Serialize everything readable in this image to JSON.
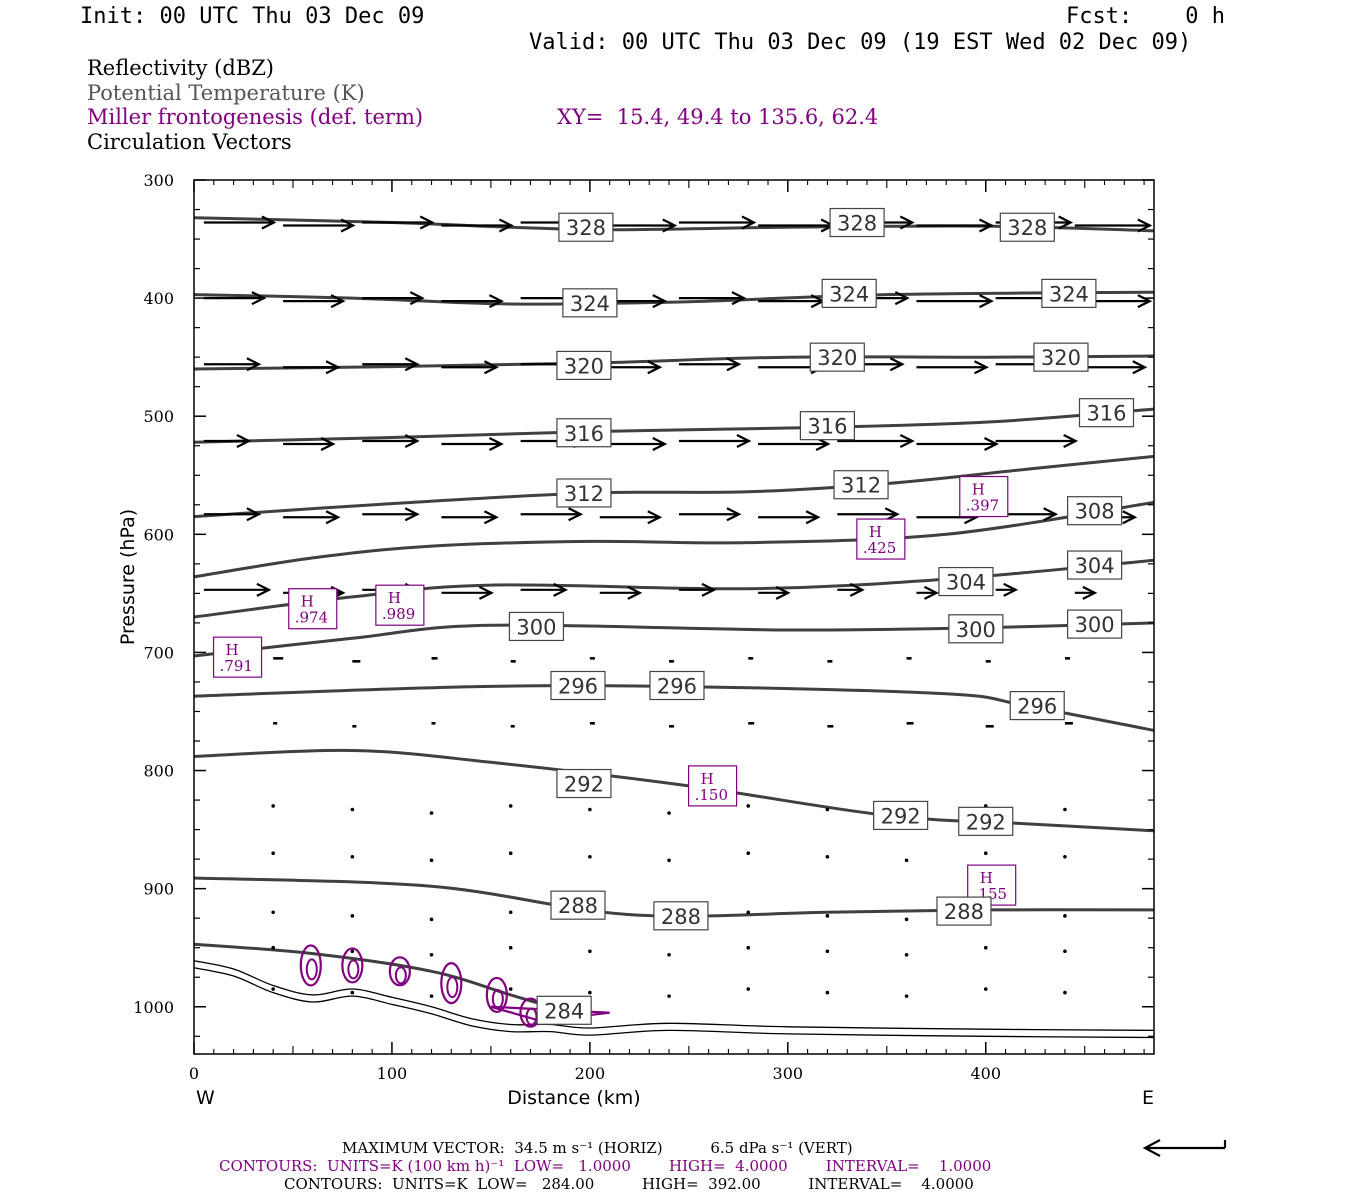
{
  "header": {
    "init": "Init: 00 UTC Thu 03 Dec 09",
    "fcst": "Fcst:    0 h",
    "valid": "Valid: 00 UTC Thu 03 Dec 09 (19 EST Wed 02 Dec 09)"
  },
  "legend": {
    "reflectivity": "Reflectivity (dBZ)",
    "theta": "Potential Temperature (K)",
    "miller": "Miller frontogenesis (def. term)",
    "xy": "XY=  15.4, 49.4 to 135.6, 62.4",
    "circulation": "Circulation Vectors"
  },
  "footer": {
    "max_vector": "MAXIMUM VECTOR:  34.5 m s⁻¹ (HORIZ)          6.5 dPa s⁻¹ (VERT)",
    "contours_purple": "CONTOURS:  UNITS=K (100 km h)⁻¹  LOW=   1.0000        HIGH=  4.0000        INTERVAL=    1.0000",
    "contours_black": "CONTOURS:  UNITS=K  LOW=   284.00          HIGH=  392.00          INTERVAL=    4.0000"
  },
  "chart_data": {
    "type": "line",
    "title": "",
    "xlabel": "Distance (km)",
    "ylabel": "Pressure (hPa)",
    "xlim": [
      0,
      485
    ],
    "ylim": [
      300,
      1040
    ],
    "y_inverted": true,
    "x_ticks": [
      "0",
      "100",
      "200",
      "300",
      "400"
    ],
    "y_ticks": [
      "300",
      "400",
      "500",
      "600",
      "700",
      "800",
      "900",
      "1000"
    ],
    "x_end_labels": {
      "left": "W",
      "right": "E"
    },
    "colors": {
      "theta": "#404040",
      "frontogenesis": "#800080",
      "vectors": "#000000"
    },
    "theta_contours": [
      {
        "value": 328,
        "points": [
          [
            0,
            332
          ],
          [
            100,
            336
          ],
          [
            200,
            342
          ],
          [
            300,
            340
          ],
          [
            400,
            339
          ],
          [
            485,
            343
          ]
        ],
        "labels": [
          [
            198,
            340
          ],
          [
            335,
            336
          ],
          [
            421,
            340
          ]
        ]
      },
      {
        "value": 324,
        "points": [
          [
            0,
            397
          ],
          [
            80,
            400
          ],
          [
            160,
            405
          ],
          [
            250,
            403
          ],
          [
            350,
            397
          ],
          [
            485,
            395
          ]
        ],
        "labels": [
          [
            200,
            404
          ],
          [
            331,
            396
          ],
          [
            442,
            396
          ]
        ]
      },
      {
        "value": 320,
        "points": [
          [
            0,
            460
          ],
          [
            100,
            458
          ],
          [
            200,
            455
          ],
          [
            300,
            450
          ],
          [
            400,
            450
          ],
          [
            485,
            449
          ]
        ],
        "labels": [
          [
            197,
            457
          ],
          [
            325,
            450
          ],
          [
            438,
            450
          ]
        ]
      },
      {
        "value": 316,
        "points": [
          [
            0,
            522
          ],
          [
            100,
            518
          ],
          [
            200,
            513
          ],
          [
            300,
            510
          ],
          [
            400,
            505
          ],
          [
            485,
            494
          ]
        ],
        "labels": [
          [
            197,
            514
          ],
          [
            320,
            508
          ],
          [
            461,
            497
          ]
        ]
      },
      {
        "value": 312,
        "points": [
          [
            0,
            585
          ],
          [
            100,
            574
          ],
          [
            200,
            565
          ],
          [
            280,
            564
          ],
          [
            350,
            557
          ],
          [
            420,
            545
          ],
          [
            485,
            534
          ]
        ],
        "labels": [
          [
            197,
            565
          ],
          [
            337,
            558
          ]
        ]
      },
      {
        "value": 308,
        "points": [
          [
            0,
            636
          ],
          [
            60,
            620
          ],
          [
            120,
            610
          ],
          [
            200,
            606
          ],
          [
            280,
            607
          ],
          [
            380,
            600
          ],
          [
            485,
            573
          ]
        ],
        "labels": [
          [
            455,
            580
          ]
        ]
      },
      {
        "value": 304,
        "points": [
          [
            0,
            670
          ],
          [
            80,
            653
          ],
          [
            150,
            643
          ],
          [
            280,
            646
          ],
          [
            380,
            638
          ],
          [
            485,
            622
          ]
        ],
        "labels": [
          [
            390,
            640
          ],
          [
            455,
            626
          ]
        ]
      },
      {
        "value": 300,
        "points": [
          [
            0,
            703
          ],
          [
            80,
            688
          ],
          [
            150,
            677
          ],
          [
            300,
            681
          ],
          [
            400,
            679
          ],
          [
            485,
            675
          ]
        ],
        "labels": [
          [
            173,
            678
          ],
          [
            395,
            680
          ],
          [
            455,
            676
          ]
        ]
      },
      {
        "value": 296,
        "points": [
          [
            0,
            737
          ],
          [
            140,
            729
          ],
          [
            250,
            729
          ],
          [
            380,
            735
          ],
          [
            420,
            745
          ],
          [
            485,
            766
          ]
        ],
        "labels": [
          [
            194,
            728
          ],
          [
            244,
            728
          ],
          [
            426,
            745
          ]
        ]
      },
      {
        "value": 292,
        "points": [
          [
            0,
            788
          ],
          [
            80,
            783
          ],
          [
            150,
            793
          ],
          [
            250,
            813
          ],
          [
            350,
            838
          ],
          [
            420,
            845
          ],
          [
            485,
            851
          ]
        ],
        "labels": [
          [
            197,
            811
          ],
          [
            357,
            838
          ],
          [
            400,
            843
          ]
        ]
      },
      {
        "value": 288,
        "points": [
          [
            0,
            891
          ],
          [
            120,
            898
          ],
          [
            220,
            922
          ],
          [
            320,
            920
          ],
          [
            400,
            918
          ],
          [
            485,
            918
          ]
        ],
        "labels": [
          [
            194,
            914
          ],
          [
            246,
            923
          ],
          [
            389,
            919
          ]
        ]
      },
      {
        "value": 284,
        "points": [
          [
            0,
            947
          ],
          [
            60,
            955
          ],
          [
            120,
            970
          ],
          [
            160,
            990
          ],
          [
            190,
            1005
          ]
        ],
        "labels": [
          [
            187,
            1003
          ]
        ]
      }
    ],
    "terrain": [
      [
        0,
        961
      ],
      [
        20,
        968
      ],
      [
        40,
        982
      ],
      [
        60,
        990
      ],
      [
        80,
        985
      ],
      [
        100,
        992
      ],
      [
        120,
        1000
      ],
      [
        140,
        1010
      ],
      [
        160,
        1015
      ],
      [
        180,
        1015
      ],
      [
        200,
        1018
      ],
      [
        240,
        1014
      ],
      [
        300,
        1017
      ],
      [
        400,
        1019
      ],
      [
        485,
        1020
      ]
    ],
    "frontogenesis_maxima": [
      {
        "label": "H",
        "value": ".791",
        "x": 22,
        "p": 704
      },
      {
        "label": "H",
        "value": ".974",
        "x": 60,
        "p": 663
      },
      {
        "label": "H",
        "value": ".989",
        "x": 104,
        "p": 660
      },
      {
        "label": "H",
        "value": ".425",
        "x": 347,
        "p": 604
      },
      {
        "label": "H",
        "value": ".397",
        "x": 399,
        "p": 568
      },
      {
        "label": "H",
        "value": ".150",
        "x": 262,
        "p": 813
      },
      {
        "label": "H",
        "value": ".155",
        "x": 403,
        "p": 897
      }
    ],
    "frontogenesis_blobs": [
      [
        59,
        965
      ],
      [
        80,
        965
      ],
      [
        104,
        970
      ],
      [
        130,
        980
      ],
      [
        153,
        990
      ],
      [
        170,
        1005
      ]
    ],
    "max_vector": {
      "horiz": 34.5,
      "horiz_units": "m s-1",
      "vert": 6.5,
      "vert_units": "dPa s-1"
    }
  }
}
